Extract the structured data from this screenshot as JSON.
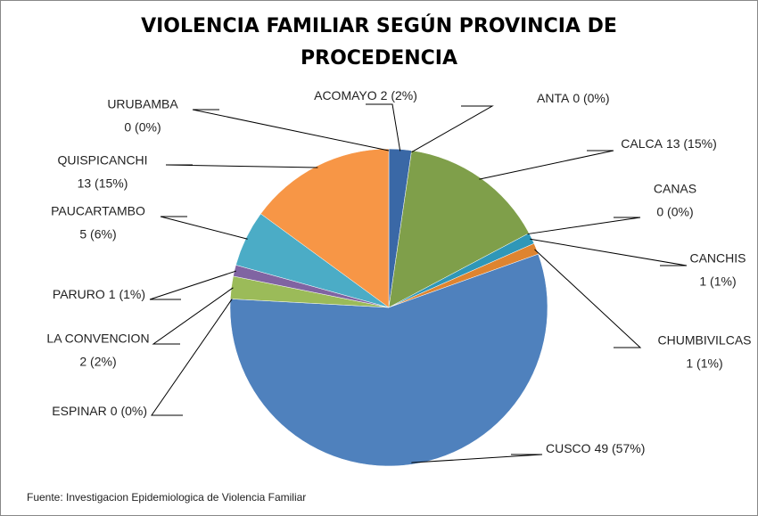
{
  "chart_data": {
    "type": "pie",
    "title": "VIOLENCIA FAMILIAR SEGÚN PROVINCIA DE PROCEDENCIA",
    "categories": [
      "ACOMAYO",
      "ANTA",
      "CALCA",
      "CANAS",
      "CANCHIS",
      "CHUMBIVILCAS",
      "CUSCO",
      "ESPINAR",
      "LA CONVENCION",
      "PARURO",
      "PAUCARTAMBO",
      "QUISPICANCHI",
      "URUBAMBA"
    ],
    "values": [
      2,
      0,
      13,
      0,
      1,
      1,
      49,
      0,
      2,
      1,
      5,
      13,
      0
    ],
    "value_labels": [
      "2 (2%)",
      "0 (0%)",
      "13 (15%)",
      "0 (0%)",
      "1 (1%)",
      "1 (1%)",
      "49 (57%)",
      "0 (0%)",
      "2 (2%)",
      "1 (1%)",
      "5 (6%)",
      "13 (15%)",
      "0 (0%)"
    ],
    "colors": [
      "#3a68a6",
      "#c0504d",
      "#7f9f4a",
      "#8064a2",
      "#2f97b8",
      "#de8430",
      "#4f81bd",
      "#c0504d",
      "#9bbb59",
      "#8064a2",
      "#4bacc6",
      "#f79646",
      "#3a68a6"
    ],
    "note": "Fuente: Investigacion Epidemiologica de Violencia Familiar"
  }
}
